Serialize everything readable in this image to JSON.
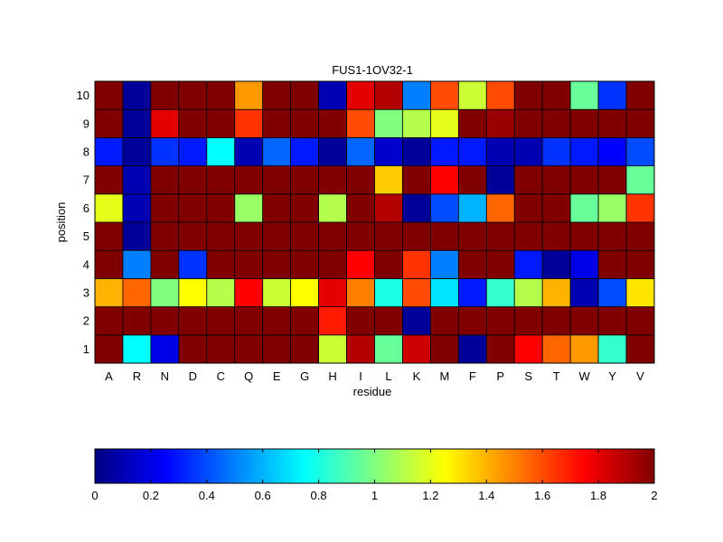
{
  "chart_data": {
    "type": "heatmap",
    "title": "FUS1-1OV32-1",
    "xlabel": "residue",
    "ylabel": "position",
    "x_categories": [
      "A",
      "R",
      "N",
      "D",
      "C",
      "Q",
      "E",
      "G",
      "H",
      "I",
      "L",
      "K",
      "M",
      "F",
      "P",
      "S",
      "T",
      "W",
      "Y",
      "V"
    ],
    "y_categories": [
      "1",
      "2",
      "3",
      "4",
      "5",
      "6",
      "7",
      "8",
      "9",
      "10"
    ],
    "grid": true,
    "colormap": "jet",
    "color_range": [
      0,
      2
    ],
    "colorbar": {
      "placement": "bottom",
      "ticks": [
        0,
        0.2,
        0.4,
        0.6,
        0.8,
        1,
        1.2,
        1.4,
        1.6,
        1.8,
        2
      ],
      "tick_labels": [
        "0",
        "0.2",
        "0.4",
        "0.6",
        "0.8",
        "1",
        "1.2",
        "1.4",
        "1.6",
        "1.8",
        "2"
      ]
    },
    "values": [
      [
        2.0,
        0.75,
        0.2,
        2.0,
        2.0,
        2.0,
        2.0,
        2.0,
        1.15,
        1.9,
        0.95,
        1.85,
        2.0,
        0.05,
        2.0,
        1.75,
        1.55,
        1.45,
        0.85,
        2.0
      ],
      [
        2.0,
        2.0,
        2.0,
        2.0,
        2.0,
        2.0,
        2.0,
        2.0,
        1.7,
        2.0,
        2.0,
        0.05,
        2.0,
        2.0,
        2.0,
        2.0,
        2.0,
        2.0,
        2.0,
        2.0
      ],
      [
        1.4,
        1.55,
        1.0,
        1.25,
        1.1,
        1.75,
        1.15,
        1.25,
        1.8,
        1.5,
        0.8,
        1.6,
        0.7,
        0.3,
        0.85,
        1.1,
        1.4,
        0.1,
        0.4,
        1.3
      ],
      [
        2.0,
        0.5,
        2.0,
        0.35,
        2.0,
        2.0,
        2.0,
        2.0,
        2.0,
        1.75,
        2.0,
        1.65,
        0.5,
        2.0,
        2.0,
        0.3,
        0.05,
        0.2,
        2.0,
        2.0
      ],
      [
        2.0,
        0.05,
        2.0,
        2.0,
        2.0,
        2.0,
        2.0,
        2.0,
        2.0,
        2.0,
        2.0,
        2.0,
        2.0,
        2.0,
        2.0,
        2.0,
        2.0,
        2.0,
        2.0,
        2.0
      ],
      [
        1.2,
        0.1,
        2.0,
        2.0,
        2.0,
        1.05,
        2.0,
        2.0,
        1.1,
        2.0,
        1.9,
        0.05,
        0.4,
        0.6,
        1.55,
        2.0,
        2.0,
        0.95,
        1.05,
        1.65
      ],
      [
        2.0,
        0.1,
        2.0,
        2.0,
        2.0,
        2.0,
        2.0,
        2.0,
        2.0,
        2.0,
        1.35,
        2.0,
        1.75,
        2.0,
        0.05,
        2.0,
        2.0,
        2.0,
        2.0,
        0.95
      ],
      [
        0.3,
        0.05,
        0.35,
        0.3,
        0.75,
        0.1,
        0.45,
        0.3,
        0.05,
        0.45,
        0.15,
        0.05,
        0.3,
        0.3,
        0.1,
        0.1,
        0.35,
        0.3,
        0.25,
        0.4
      ],
      [
        2.0,
        0.05,
        1.8,
        2.0,
        2.0,
        1.65,
        2.0,
        2.0,
        2.0,
        1.6,
        1.0,
        1.1,
        1.2,
        2.0,
        1.95,
        2.0,
        2.0,
        2.0,
        2.0,
        2.0
      ],
      [
        2.0,
        0.05,
        2.0,
        2.0,
        2.0,
        1.45,
        2.0,
        2.0,
        0.1,
        1.8,
        1.9,
        0.5,
        1.6,
        1.15,
        1.6,
        2.0,
        2.0,
        0.95,
        0.35,
        2.0
      ]
    ]
  }
}
